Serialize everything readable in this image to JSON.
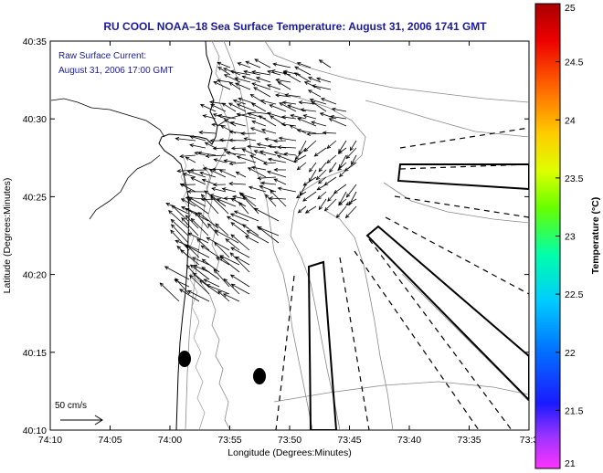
{
  "title": "RU COOL  NOAA–18  Sea Surface Temperature:  August 31, 2006 1741 GMT",
  "inset": {
    "line1": "Raw Surface Current:",
    "line2": "August 31, 2006 17:00 GMT"
  },
  "axes": {
    "xlabel": "Longitude (Degrees:Minutes)",
    "ylabel": "Latitude (Degrees:Minutes)",
    "xticks": [
      "74:10",
      "74:05",
      "74:00",
      "73:55",
      "73:50",
      "73:45",
      "73:40",
      "73:35",
      "73:3"
    ],
    "yticks": [
      "40:35",
      "40:30",
      "40:25",
      "40:20",
      "40:15",
      "40:10"
    ]
  },
  "colorbar": {
    "label": "Temperature (°C)",
    "ticks": [
      "25",
      "24.5",
      "24",
      "23.5",
      "23",
      "22.5",
      "22",
      "21.5",
      "21"
    ],
    "min": 21,
    "max": 25
  },
  "scale_arrow": {
    "label": "50 cm/s"
  }
}
